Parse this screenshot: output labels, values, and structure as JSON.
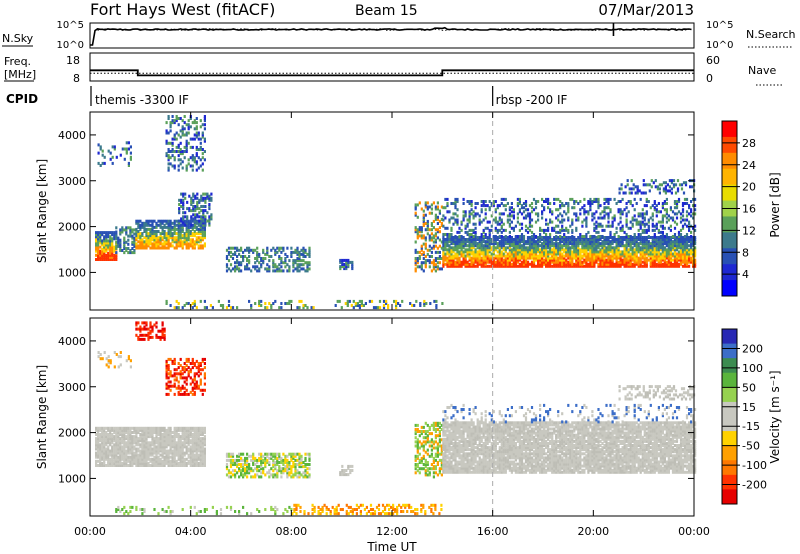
{
  "header": {
    "title": "Fort Hays West (fitACF)",
    "beam": "Beam 15",
    "date": "07/Mar/2013"
  },
  "nsky_panel": {
    "left_label": "N.Sky",
    "left_ticks": [
      "10^5",
      "10^0"
    ],
    "right_ticks": [
      "10^5",
      "10^0"
    ],
    "right_label": "N.Search"
  },
  "freq_panel": {
    "left_label_line1": "Freq.",
    "left_label_line2": "[MHz]",
    "left_ticks": [
      "18",
      "8"
    ],
    "right_ticks": [
      "60",
      "0"
    ],
    "right_label": "Nave"
  },
  "cpid": {
    "label": "CPID",
    "first": "themis -3300 IF",
    "second": "rbsp -200 IF",
    "switch_hour": 16
  },
  "x_axis": {
    "label": "Time UT",
    "ticks": [
      "00:00",
      "04:00",
      "08:00",
      "12:00",
      "16:00",
      "20:00",
      "00:00"
    ]
  },
  "power_panel": {
    "ylabel": "Slant Range [km]",
    "yticks": [
      "1000",
      "2000",
      "3000",
      "4000"
    ],
    "cbar_label": "Power [dB]",
    "cbar_ticks": [
      "28",
      "24",
      "20",
      "16",
      "12",
      "8",
      "4"
    ],
    "cbar_colors": [
      "#ff0000",
      "#ff4a00",
      "#ff8c00",
      "#ffb400",
      "#e8dc00",
      "#a0d24a",
      "#5aa05a",
      "#3c7a8c",
      "#2850b4",
      "#1e28d2",
      "#0000ff"
    ]
  },
  "velocity_panel": {
    "ylabel": "Slant Range [km]",
    "yticks": [
      "1000",
      "2000",
      "3000",
      "4000"
    ],
    "cbar_label": "Velocity [m s⁻¹]",
    "cbar_ticks": [
      "200",
      "100",
      "50",
      "15",
      "-15",
      "-50",
      "-100",
      "-200"
    ],
    "cbar_colors": [
      "#2828b4",
      "#3c6ec8",
      "#3c8c50",
      "#5ab43c",
      "#96d250",
      "#c8c8c0",
      "#c8c8c0",
      "#ffd200",
      "#ffa000",
      "#ff7800",
      "#ff3200",
      "#e60000"
    ]
  },
  "chart_data": [
    {
      "type": "line",
      "title": "Fort Hays West (fitACF)",
      "series": [
        {
          "name": "N.Sky",
          "x": [
            0,
            0.2,
            0.3,
            4,
            8,
            12,
            13.8,
            14,
            16,
            20,
            20.8,
            24
          ],
          "y": [
            4,
            0,
            4.2,
            4.3,
            4.2,
            4.2,
            4.6,
            4.4,
            4.3,
            4.3,
            5,
            4.3
          ]
        }
      ],
      "xlim": [
        0,
        24
      ],
      "ylim": [
        "10^0",
        "10^5"
      ]
    },
    {
      "type": "line",
      "series": [
        {
          "name": "Freq. [MHz]",
          "x": [
            0,
            1.9,
            1.9,
            14,
            14,
            24
          ],
          "y": [
            12.2,
            12.2,
            10,
            10,
            12.2,
            12.2
          ]
        },
        {
          "name": "Nave",
          "x": [
            0,
            24
          ],
          "y": [
            14,
            14
          ]
        }
      ],
      "xlim": [
        0,
        24
      ],
      "ylim": [
        8,
        18
      ]
    },
    {
      "type": "heatmap",
      "xlabel": "Time UT",
      "ylabel": "Slant Range [km]",
      "xlim": [
        0,
        24
      ],
      "ylim": [
        180,
        4500
      ],
      "colorbar": "Power [dB]",
      "regions": [
        {
          "x": [
            0.2,
            1.0
          ],
          "y": [
            1300,
            1800
          ],
          "value": "high"
        },
        {
          "x": [
            1.0,
            1.8
          ],
          "y": [
            1400,
            1900
          ],
          "value": "mid"
        },
        {
          "x": [
            1.8,
            4.6
          ],
          "y": [
            1500,
            2100
          ],
          "value": "mid"
        },
        {
          "x": [
            3.5,
            4.8
          ],
          "y": [
            2000,
            2600
          ],
          "value": "low"
        },
        {
          "x": [
            3.0,
            4.5
          ],
          "y": [
            3200,
            4400
          ],
          "value": "low"
        },
        {
          "x": [
            5.4,
            8.7
          ],
          "y": [
            1000,
            1500
          ],
          "value": "low"
        },
        {
          "x": [
            9.9,
            10.4
          ],
          "y": [
            1050,
            1250
          ],
          "value": "low"
        },
        {
          "x": [
            12.9,
            14.0
          ],
          "y": [
            1000,
            2500
          ],
          "value": "mid"
        },
        {
          "x": [
            14.0,
            24.0
          ],
          "y": [
            1100,
            1700
          ],
          "value": "high"
        },
        {
          "x": [
            14.0,
            24.0
          ],
          "y": [
            1700,
            2600
          ],
          "value": "low"
        }
      ]
    },
    {
      "type": "heatmap",
      "xlabel": "Time UT",
      "ylabel": "Slant Range [km]",
      "xlim": [
        0,
        24
      ],
      "ylim": [
        180,
        4500
      ],
      "colorbar": "Velocity [m s⁻¹]",
      "regions": [
        {
          "x": [
            0.2,
            4.6
          ],
          "y": [
            1200,
            2100
          ],
          "value": "-15 to 15"
        },
        {
          "x": [
            3.0,
            4.6
          ],
          "y": [
            2800,
            3600
          ],
          "value": "-200"
        },
        {
          "x": [
            1.8,
            3.0
          ],
          "y": [
            4000,
            4400
          ],
          "value": "-200"
        },
        {
          "x": [
            5.4,
            8.7
          ],
          "y": [
            1000,
            1500
          ],
          "value": "15 to 50"
        },
        {
          "x": [
            12.9,
            14.0
          ],
          "y": [
            1000,
            2200
          ],
          "value": "50"
        },
        {
          "x": [
            14.0,
            24.0
          ],
          "y": [
            1100,
            2200
          ],
          "value": "-15 to 15"
        },
        {
          "x": [
            8.0,
            14.0
          ],
          "y": [
            200,
            400
          ],
          "value": "-50"
        }
      ]
    }
  ]
}
